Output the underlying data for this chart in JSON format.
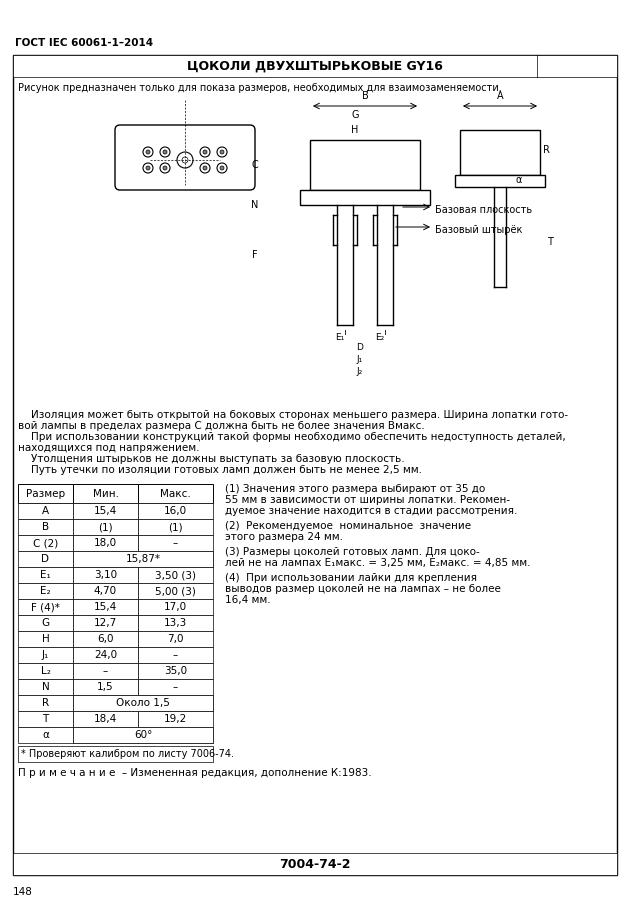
{
  "page_title": "ГОСТ IEC 60061-1–2014",
  "box_title": "ЦОКОЛИ ДВУХШТЫРЬКОВЫЕ GY16",
  "subtitle": "Рисунок предназначен только для показа размеров, необходимых для взаимозаменяемости.",
  "para1": "Изоляция может быть открытой на боковых сторонах меньшего размера. Ширина лопатки гото-\nвой лампы в пределах размера С должна быть не более значения Вмакс.",
  "para2": "При использовании конструкций такой формы необходимо обеспечить недоступность деталей,\nнаходящихся под напряжением.",
  "para3": "Утолщения штырьков не должны выступать за базовую плоскость.",
  "para4": "Путь утечки по изоляции готовых ламп должен быть не менее 2,5 мм.",
  "table_headers": [
    "Размер",
    "Мин.",
    "Макс."
  ],
  "table_rows": [
    [
      "A",
      "15,4",
      "16,0"
    ],
    [
      "B",
      "(1)",
      "(1)"
    ],
    [
      "C (2)",
      "18,0",
      "–"
    ],
    [
      "D",
      "15,87*",
      ""
    ],
    [
      "E₁",
      "3,10",
      "3,50 (3)"
    ],
    [
      "E₂",
      "4,70",
      "5,00 (3)"
    ],
    [
      "F (4)*",
      "15,4",
      "17,0"
    ],
    [
      "G",
      "12,7",
      "13,3"
    ],
    [
      "H",
      "6,0",
      "7,0"
    ],
    [
      "J₁",
      "24,0",
      "–"
    ],
    [
      "L₂",
      "–",
      "35,0"
    ],
    [
      "N",
      "1,5",
      "–"
    ],
    [
      "R",
      "Около 1,5",
      ""
    ],
    [
      "T",
      "18,4",
      "19,2"
    ],
    [
      "α",
      "60°",
      ""
    ]
  ],
  "table_footnote": "* Проверяют калибром по листу 7006-74.",
  "note": "П р и м е ч а н и е  – Измененная редакция, дополнение К:1983.",
  "right_notes": [
    "(1) Значения этого размера выбирают от 35 до\n55 мм в зависимости от ширины лопатки. Рекомен-\nдуемое значение находится в стадии рассмотрения.",
    "(2)  Рекомендуемое  номинальное  значение\nэтого размера 24 мм.",
    "(3) Размеры цоколей готовых ламп. Для цоко-\nлей не на лампах E₁макс. = 3,25 мм, E₂макс. = 4,85 мм.",
    "(4)  При использовании лайки для крепления\nвыводов размер цоколей не на лампах – не более\n16,4 мм."
  ],
  "bottom_code": "7004-74-2",
  "page_number": "148",
  "bg_color": "#ffffff",
  "border_color": "#000000",
  "text_color": "#000000"
}
